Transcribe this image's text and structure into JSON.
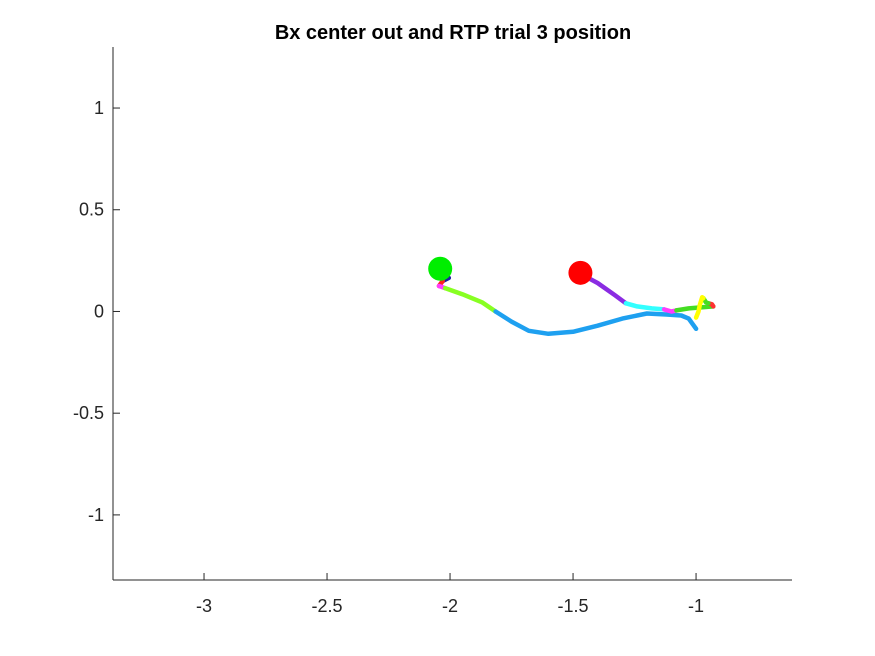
{
  "chart_data": {
    "type": "line",
    "title": "Bx  center out and RTP trial 3 position",
    "xlabel": "",
    "ylabel": "",
    "xlim": [
      -3.37,
      -0.61
    ],
    "ylim": [
      -1.32,
      1.3
    ],
    "xticks": [
      -3,
      -2.5,
      -2,
      -1.5,
      -1
    ],
    "xtick_labels": [
      "-3",
      "-2.5",
      "-2",
      "-1.5",
      "-1"
    ],
    "yticks": [
      1,
      0.5,
      0,
      -0.5,
      -1
    ],
    "ytick_labels": [
      "1",
      "0.5",
      "0",
      "-0.5",
      "-1"
    ],
    "grid": false,
    "box": "left-bottom axes only",
    "segments": [
      {
        "color": "#1e1ea0",
        "points": [
          [
            -2.005,
            0.165
          ],
          [
            -2.03,
            0.15
          ]
        ]
      },
      {
        "color": "#ff2020",
        "points": [
          [
            -2.03,
            0.15
          ],
          [
            -2.045,
            0.125
          ]
        ]
      },
      {
        "color": "#ff3cff",
        "points": [
          [
            -2.045,
            0.125
          ],
          [
            -2.02,
            0.115
          ]
        ]
      },
      {
        "color": "#88ff22",
        "points": [
          [
            -2.02,
            0.115
          ],
          [
            -1.95,
            0.085
          ],
          [
            -1.87,
            0.045
          ],
          [
            -1.815,
            0.0
          ]
        ]
      },
      {
        "color": "#1ea0f0",
        "points": [
          [
            -1.815,
            0.0
          ],
          [
            -1.75,
            -0.05
          ],
          [
            -1.68,
            -0.095
          ],
          [
            -1.6,
            -0.11
          ],
          [
            -1.5,
            -0.1
          ],
          [
            -1.4,
            -0.07
          ],
          [
            -1.3,
            -0.035
          ],
          [
            -1.2,
            -0.01
          ],
          [
            -1.12,
            -0.015
          ],
          [
            -1.06,
            -0.02
          ],
          [
            -1.03,
            -0.035
          ],
          [
            -1.0,
            -0.085
          ]
        ]
      },
      {
        "color": "#8a2be2",
        "points": [
          [
            -1.47,
            0.185
          ],
          [
            -1.4,
            0.14
          ],
          [
            -1.33,
            0.08
          ],
          [
            -1.285,
            0.04
          ]
        ]
      },
      {
        "color": "#33ffff",
        "points": [
          [
            -1.285,
            0.04
          ],
          [
            -1.24,
            0.025
          ],
          [
            -1.18,
            0.015
          ],
          [
            -1.13,
            0.01
          ]
        ]
      },
      {
        "color": "#ff3cff",
        "points": [
          [
            -1.13,
            0.01
          ],
          [
            -1.1,
            0.0
          ],
          [
            -1.08,
            0.005
          ]
        ]
      },
      {
        "color": "#44dd22",
        "points": [
          [
            -1.08,
            0.005
          ],
          [
            -1.03,
            0.015
          ],
          [
            -0.98,
            0.02
          ],
          [
            -0.93,
            0.025
          ]
        ]
      },
      {
        "color": "#ff3030",
        "points": [
          [
            -0.93,
            0.025
          ],
          [
            -0.935,
            0.035
          ],
          [
            -0.95,
            0.04
          ]
        ]
      },
      {
        "color": "#44dd22",
        "points": [
          [
            -0.95,
            0.04
          ],
          [
            -0.96,
            0.045
          ],
          [
            -0.97,
            0.065
          ]
        ]
      },
      {
        "color": "#ffff00",
        "points": [
          [
            -0.97,
            0.065
          ],
          [
            -0.975,
            0.07
          ],
          [
            -0.985,
            0.03
          ],
          [
            -0.99,
            0.0
          ],
          [
            -1.0,
            -0.03
          ]
        ]
      }
    ],
    "markers": [
      {
        "name": "start",
        "x": -2.04,
        "y": 0.21,
        "color": "#00ee00"
      },
      {
        "name": "target",
        "x": -1.47,
        "y": 0.19,
        "color": "#ff0000"
      }
    ]
  }
}
